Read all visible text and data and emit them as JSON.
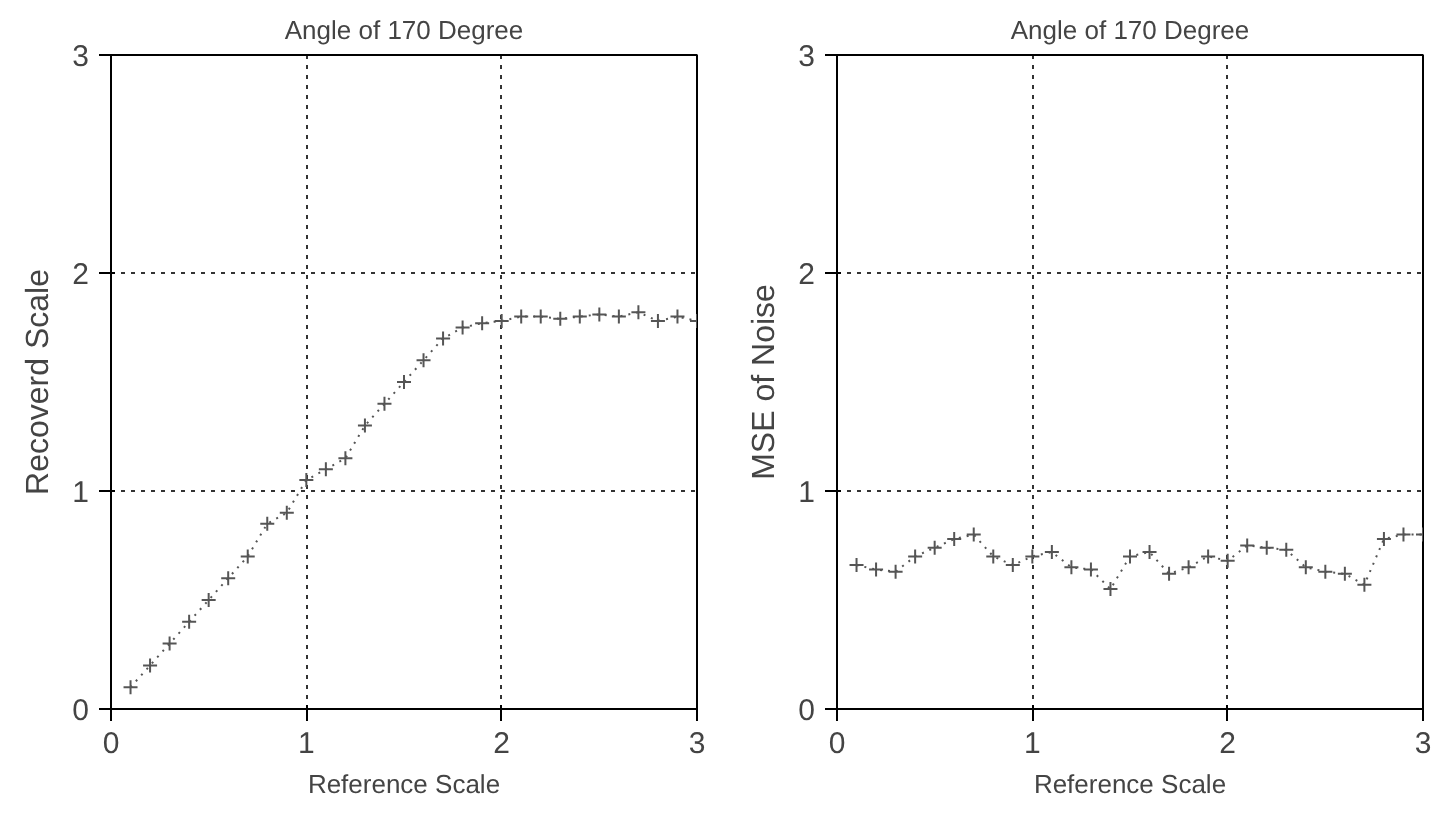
{
  "chart_data": [
    {
      "type": "line",
      "title": "Angle of 170 Degree",
      "xlabel": "Reference Scale",
      "ylabel": "Recoverd Scale",
      "x": [
        0.1,
        0.2,
        0.3,
        0.4,
        0.5,
        0.6,
        0.7,
        0.8,
        0.9,
        1.0,
        1.1,
        1.2,
        1.3,
        1.4,
        1.5,
        1.6,
        1.7,
        1.8,
        1.9,
        2.0,
        2.1,
        2.2,
        2.3,
        2.4,
        2.5,
        2.6,
        2.7,
        2.8,
        2.9,
        3.0
      ],
      "series": [
        {
          "color": "#555555",
          "values": [
            0.1,
            0.2,
            0.3,
            0.4,
            0.5,
            0.6,
            0.7,
            0.85,
            0.9,
            1.05,
            1.1,
            1.15,
            1.3,
            1.4,
            1.5,
            1.6,
            1.7,
            1.75,
            1.77,
            1.78,
            1.8,
            1.8,
            1.79,
            1.8,
            1.81,
            1.8,
            1.82,
            1.78,
            1.8,
            1.78
          ]
        }
      ],
      "xlim": [
        0,
        3
      ],
      "ylim": [
        0,
        3
      ],
      "xticks": [
        0,
        1,
        2,
        3
      ],
      "yticks": [
        0,
        1,
        2,
        3
      ],
      "grid": true,
      "marker": "cross",
      "line_style": "dotted"
    },
    {
      "type": "line",
      "title": "Angle of 170 Degree",
      "xlabel": "Reference Scale",
      "ylabel": "MSE of Noise",
      "x": [
        0.1,
        0.2,
        0.3,
        0.4,
        0.5,
        0.6,
        0.7,
        0.8,
        0.9,
        1.0,
        1.1,
        1.2,
        1.3,
        1.4,
        1.5,
        1.6,
        1.7,
        1.8,
        1.9,
        2.0,
        2.1,
        2.2,
        2.3,
        2.4,
        2.5,
        2.6,
        2.7,
        2.8,
        2.9,
        3.0
      ],
      "series": [
        {
          "color": "#555555",
          "values": [
            0.66,
            0.64,
            0.63,
            0.7,
            0.74,
            0.78,
            0.8,
            0.7,
            0.66,
            0.7,
            0.72,
            0.65,
            0.64,
            0.55,
            0.7,
            0.72,
            0.62,
            0.65,
            0.7,
            0.68,
            0.75,
            0.74,
            0.73,
            0.65,
            0.63,
            0.62,
            0.57,
            0.78,
            0.8,
            0.8
          ]
        }
      ],
      "xlim": [
        0,
        3
      ],
      "ylim": [
        0,
        3
      ],
      "xticks": [
        0,
        1,
        2,
        3
      ],
      "yticks": [
        0,
        1,
        2,
        3
      ],
      "grid": true,
      "marker": "cross",
      "line_style": "dotted"
    }
  ]
}
